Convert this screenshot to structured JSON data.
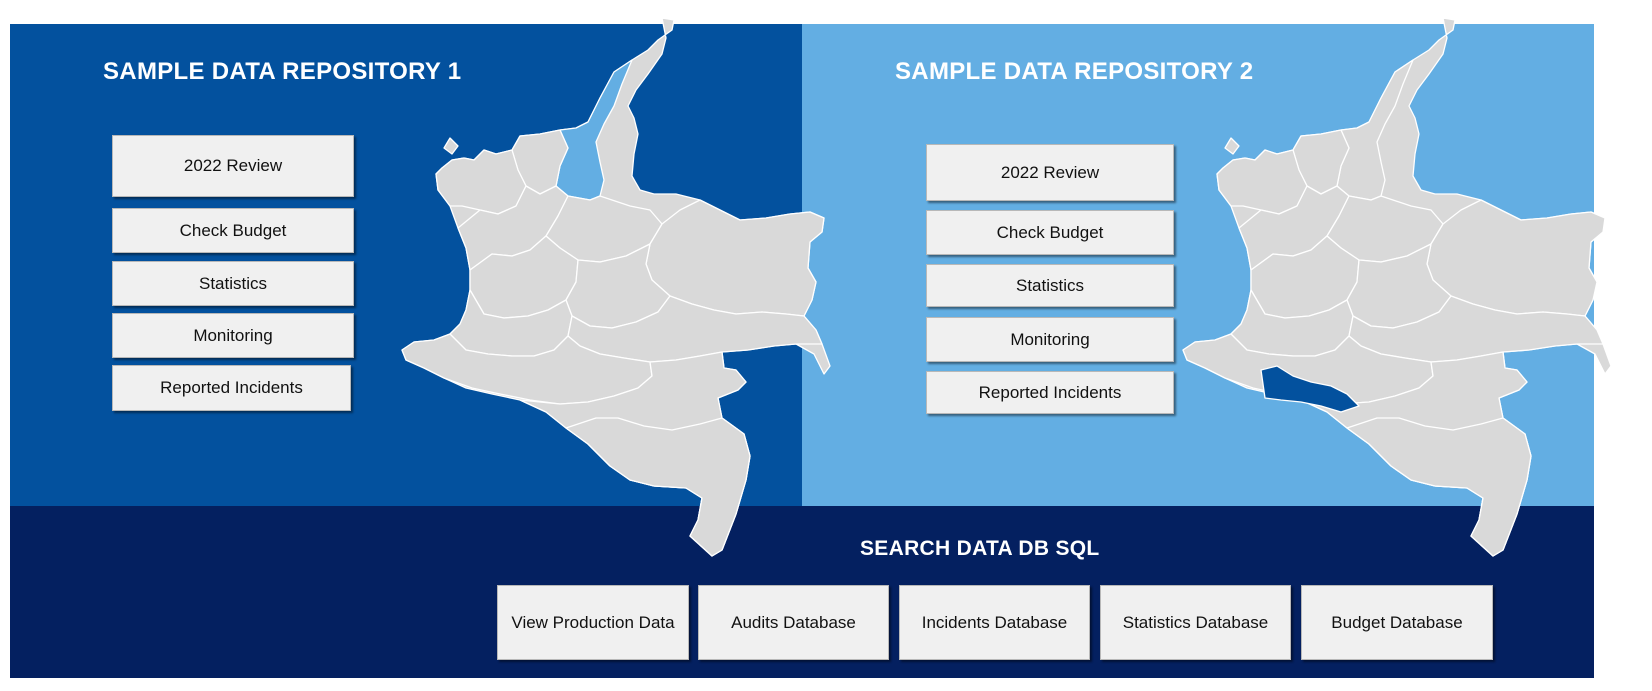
{
  "repository_1": {
    "title": "SAMPLE DATA REPOSITORY 1",
    "buttons": [
      {
        "label": "2022 Review"
      },
      {
        "label": "Check Budget"
      },
      {
        "label": "Statistics"
      },
      {
        "label": "Monitoring"
      },
      {
        "label": "Reported Incidents"
      }
    ],
    "highlight_color": "#63aee3",
    "background_color": "#03519e"
  },
  "repository_2": {
    "title": "SAMPLE DATA REPOSITORY 2",
    "buttons": [
      {
        "label": "2022 Review"
      },
      {
        "label": "Check Budget"
      },
      {
        "label": "Statistics"
      },
      {
        "label": "Monitoring"
      },
      {
        "label": "Reported Incidents"
      }
    ],
    "highlight_color": "#03519e",
    "background_color": "#63aee3"
  },
  "search": {
    "title": "SEARCH DATA DB SQL",
    "buttons": [
      {
        "label": "View Production Data"
      },
      {
        "label": "Audits Database"
      },
      {
        "label": "Incidents Database"
      },
      {
        "label": "Statistics Database"
      },
      {
        "label": "Budget Database"
      }
    ],
    "background_color": "#042060"
  },
  "map": {
    "fill_color": "#d9d9d9",
    "border_color": "#ffffff"
  }
}
